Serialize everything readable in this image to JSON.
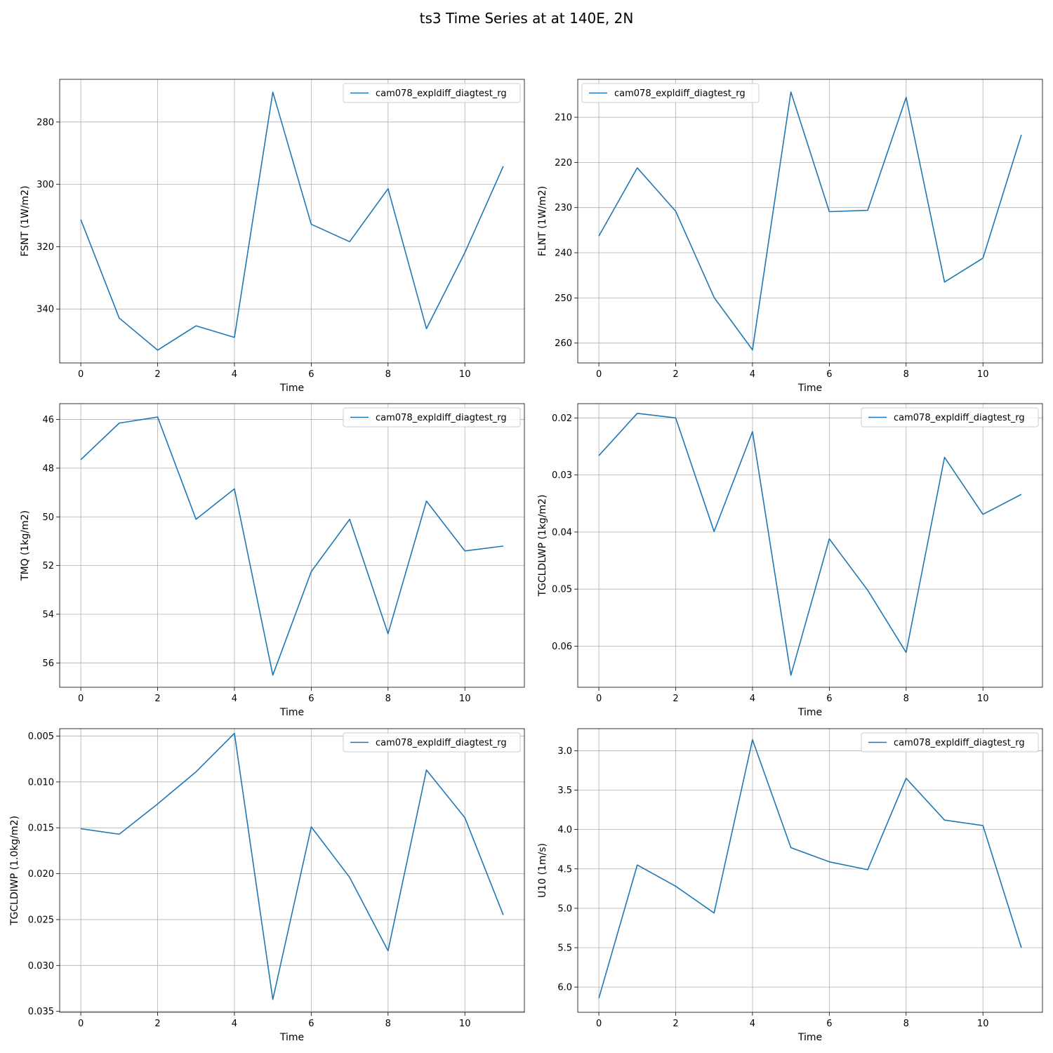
{
  "figure": {
    "title": "ts3 Time Series at at 140E, 2N"
  },
  "colors": {
    "series": "#1f77b4",
    "grid": "#b0b0b0",
    "axes": "#000000",
    "legend_border": "#cccccc"
  },
  "chart_data": [
    {
      "type": "line",
      "xlabel": "Time",
      "ylabel": "FSNT (1W/m2)",
      "xlim": [
        -0.55,
        11.55
      ],
      "ylim": [
        357.3,
        266.3
      ],
      "x_ticks": [
        0,
        2,
        4,
        6,
        8,
        10
      ],
      "y_ticks": [
        280,
        300,
        320,
        340
      ],
      "y_tick_labels": [
        "280",
        "300",
        "320",
        "340"
      ],
      "grid": true,
      "legend_position": "upper-right",
      "series": [
        {
          "name": "cam078_expldiff_diagtest_rg",
          "x": [
            0,
            1,
            2,
            3,
            4,
            5,
            6,
            7,
            8,
            9,
            10,
            11
          ],
          "y": [
            311.3,
            342.9,
            353.2,
            345.4,
            349.1,
            270.4,
            312.8,
            318.4,
            301.4,
            346.3,
            321.9,
            294.2
          ]
        }
      ]
    },
    {
      "type": "line",
      "xlabel": "Time",
      "ylabel": "FLNT (1W/m2)",
      "xlim": [
        -0.55,
        11.55
      ],
      "ylim": [
        264.4,
        201.6
      ],
      "x_ticks": [
        0,
        2,
        4,
        6,
        8,
        10
      ],
      "y_ticks": [
        210,
        220,
        230,
        240,
        250,
        260
      ],
      "y_tick_labels": [
        "210",
        "220",
        "230",
        "240",
        "250",
        "260"
      ],
      "grid": true,
      "legend_position": "upper-left",
      "series": [
        {
          "name": "cam078_expldiff_diagtest_rg",
          "x": [
            0,
            1,
            2,
            3,
            4,
            5,
            6,
            7,
            8,
            9,
            10,
            11
          ],
          "y": [
            236.3,
            221.2,
            230.8,
            249.9,
            261.5,
            204.4,
            230.9,
            230.6,
            205.6,
            246.5,
            241.2,
            213.9
          ]
        }
      ]
    },
    {
      "type": "line",
      "xlabel": "Time",
      "ylabel": "TMQ (1kg/m2)",
      "xlim": [
        -0.55,
        11.55
      ],
      "ylim": [
        57.0,
        45.35
      ],
      "x_ticks": [
        0,
        2,
        4,
        6,
        8,
        10
      ],
      "y_ticks": [
        46,
        48,
        50,
        52,
        54,
        56
      ],
      "y_tick_labels": [
        "46",
        "48",
        "50",
        "52",
        "54",
        "56"
      ],
      "grid": true,
      "legend_position": "upper-right",
      "series": [
        {
          "name": "cam078_expldiff_diagtest_rg",
          "x": [
            0,
            1,
            2,
            3,
            4,
            5,
            6,
            7,
            8,
            9,
            10,
            11
          ],
          "y": [
            47.65,
            46.15,
            45.9,
            50.1,
            48.85,
            56.5,
            52.25,
            50.1,
            54.8,
            49.35,
            51.4,
            51.2
          ]
        }
      ]
    },
    {
      "type": "line",
      "xlabel": "Time",
      "ylabel": "TGCLDLWP (1kg/m2)",
      "xlim": [
        -0.55,
        11.55
      ],
      "ylim": [
        0.0672,
        0.0175
      ],
      "x_ticks": [
        0,
        2,
        4,
        6,
        8,
        10
      ],
      "y_ticks": [
        0.02,
        0.03,
        0.04,
        0.05,
        0.06
      ],
      "y_tick_labels": [
        "0.02",
        "0.03",
        "0.04",
        "0.05",
        "0.06"
      ],
      "grid": true,
      "legend_position": "upper-right",
      "series": [
        {
          "name": "cam078_expldiff_diagtest_rg",
          "x": [
            0,
            1,
            2,
            3,
            4,
            5,
            6,
            7,
            8,
            9,
            10,
            11
          ],
          "y": [
            0.0266,
            0.0192,
            0.02,
            0.0399,
            0.0224,
            0.0651,
            0.0412,
            0.0502,
            0.0611,
            0.0269,
            0.0369,
            0.0334
          ]
        }
      ]
    },
    {
      "type": "line",
      "xlabel": "Time",
      "ylabel": "TGCLDIWP (1.0kg/m2)",
      "xlim": [
        -0.55,
        11.55
      ],
      "ylim": [
        0.0351,
        0.0042
      ],
      "x_ticks": [
        0,
        2,
        4,
        6,
        8,
        10
      ],
      "y_ticks": [
        0.005,
        0.01,
        0.015,
        0.02,
        0.025,
        0.03,
        0.035
      ],
      "y_tick_labels": [
        "0.005",
        "0.010",
        "0.015",
        "0.020",
        "0.025",
        "0.030",
        "0.035"
      ],
      "grid": true,
      "legend_position": "upper-right",
      "series": [
        {
          "name": "cam078_expldiff_diagtest_rg",
          "x": [
            0,
            1,
            2,
            3,
            4,
            5,
            6,
            7,
            8,
            9,
            10,
            11
          ],
          "y": [
            0.0151,
            0.0157,
            0.0124,
            0.0089,
            0.0047,
            0.0337,
            0.0149,
            0.0204,
            0.0284,
            0.0087,
            0.0139,
            0.0245
          ]
        }
      ]
    },
    {
      "type": "line",
      "xlabel": "Time",
      "ylabel": "U10 (1m/s)",
      "xlim": [
        -0.55,
        11.55
      ],
      "ylim": [
        6.32,
        2.72
      ],
      "x_ticks": [
        0,
        2,
        4,
        6,
        8,
        10
      ],
      "y_ticks": [
        3.0,
        3.5,
        4.0,
        4.5,
        5.0,
        5.5,
        6.0
      ],
      "y_tick_labels": [
        "3.0",
        "3.5",
        "4.0",
        "4.5",
        "5.0",
        "5.5",
        "6.0"
      ],
      "grid": true,
      "legend_position": "upper-right",
      "series": [
        {
          "name": "cam078_expldiff_diagtest_rg",
          "x": [
            0,
            1,
            2,
            3,
            4,
            5,
            6,
            7,
            8,
            9,
            10,
            11
          ],
          "y": [
            6.14,
            4.45,
            4.72,
            5.06,
            2.86,
            4.23,
            4.41,
            4.51,
            3.35,
            3.88,
            3.95,
            5.5
          ]
        }
      ]
    }
  ]
}
